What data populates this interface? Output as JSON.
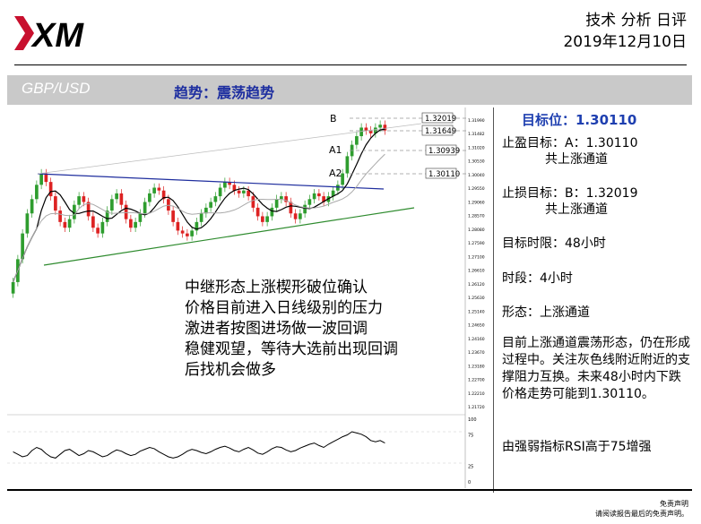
{
  "header": {
    "logo_text": "XM",
    "report_title": "技术 分析 日评",
    "report_date": "2019年12月10日"
  },
  "banner": {
    "pair": "GBP/USD",
    "trend": "趋势：震荡趋势"
  },
  "chart_annotations": [
    "中继形态上涨楔形破位确认",
    "价格目前进入日线级别的压力",
    "激进者按图进场做一波回调",
    "稳健观望，等待大选前出现回调",
    "后找机会做多"
  ],
  "levels": {
    "B": {
      "label": "B",
      "value": "1.32019"
    },
    "current": {
      "value": "1.31649"
    },
    "A1": {
      "label": "A1",
      "value": "1.30939"
    },
    "A2": {
      "label": "A2",
      "value": "1.30110"
    }
  },
  "sidebar": {
    "target": "目标位：1.30110",
    "tp_label": "止盈目标：A：1.30110",
    "tp_sub": "共上涨通道",
    "sl_label": "止损目标：B：1.32019",
    "sl_sub": "共上涨通道",
    "timelimit": "目标时限：48小时",
    "timeframe": "时段：4小时",
    "pattern": "形态：上涨通道",
    "description": "目前上涨通道震荡形态，仍在形成过程中。关注灰色线附近附近的支撑阻力互换。未来48小时内下跌价格走势可能到1.30110。",
    "rsi_note": "由强弱指标RSI高于75增强"
  },
  "disclaimer": {
    "line1": "免责声明",
    "line2": "请阅读报告最后的免责声明。"
  },
  "chart_data": {
    "type": "candlestick",
    "y_axis_ticks": [
      "1.31990",
      "1.31482",
      "1.31020",
      "1.30530",
      "1.30040",
      "1.29550",
      "1.29060",
      "1.28570",
      "1.28080",
      "1.27590",
      "1.27100",
      "1.26610",
      "1.26120",
      "1.25630",
      "1.25140",
      "1.24650",
      "1.24160",
      "1.23670",
      "1.23180",
      "1.22700",
      "1.22210",
      "1.21720"
    ],
    "last_price": "1.31482",
    "ylim": [
      1.2172,
      1.3199
    ],
    "closes": [
      1.262,
      1.27,
      1.279,
      1.286,
      1.291,
      1.296,
      1.3,
      1.297,
      1.292,
      1.287,
      1.283,
      1.281,
      1.284,
      1.289,
      1.292,
      1.29,
      1.285,
      1.281,
      1.279,
      1.283,
      1.287,
      1.291,
      1.293,
      1.289,
      1.284,
      1.281,
      1.283,
      1.286,
      1.29,
      1.293,
      1.295,
      1.294,
      1.291,
      1.287,
      1.283,
      1.28,
      1.279,
      1.278,
      1.28,
      1.283,
      1.286,
      1.288,
      1.29,
      1.292,
      1.295,
      1.297,
      1.296,
      1.294,
      1.293,
      1.294,
      1.292,
      1.288,
      1.285,
      1.283,
      1.285,
      1.288,
      1.291,
      1.292,
      1.29,
      1.286,
      1.284,
      1.286,
      1.289,
      1.291,
      1.293,
      1.292,
      1.29,
      1.292,
      1.294,
      1.296,
      1.3,
      1.306,
      1.31,
      1.313,
      1.316,
      1.315,
      1.314,
      1.316,
      1.317,
      1.315
    ],
    "rsi_axis": [
      "100",
      "75",
      "25",
      "0"
    ],
    "rsi": [
      48,
      44,
      40,
      42,
      50,
      55,
      52,
      45,
      40,
      38,
      44,
      50,
      52,
      47,
      42,
      45,
      50,
      48,
      44,
      40,
      42,
      47,
      51,
      49,
      45,
      42,
      44,
      49,
      52,
      55,
      53,
      48,
      44,
      40,
      38,
      40,
      44,
      49,
      52,
      50,
      47,
      45,
      48,
      52,
      55,
      57,
      54,
      50,
      48,
      52,
      55,
      51,
      46,
      44,
      48,
      53,
      56,
      55,
      51,
      48,
      50,
      54,
      57,
      60,
      62,
      58,
      55,
      60,
      64,
      68,
      72,
      75,
      80,
      78,
      76,
      72,
      66,
      64,
      66,
      62
    ]
  }
}
